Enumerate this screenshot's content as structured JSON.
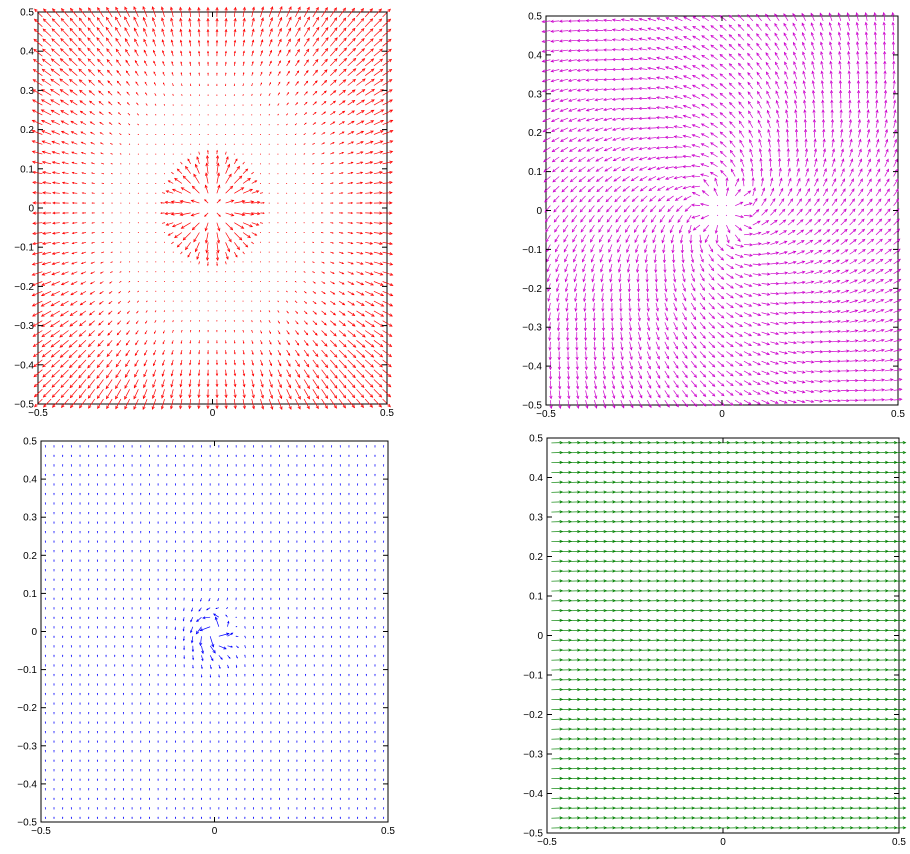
{
  "chart_data": [
    {
      "type": "quiver",
      "panel": "top-left",
      "field": "radial-rings",
      "color": "#ff0000",
      "xlim": [
        -0.5,
        0.5
      ],
      "ylim": [
        -0.5,
        0.5
      ],
      "xticks": [
        "-0.5",
        "0",
        "0.5"
      ],
      "yticks": [
        "-0.5",
        "-0.4",
        "-0.3",
        "-0.2",
        "-0.1",
        "0",
        "0.1",
        "0.2",
        "0.3",
        "0.4",
        "0.5"
      ],
      "grid": false
    },
    {
      "type": "quiver",
      "panel": "top-right",
      "field": "swirl-source",
      "color": "#cc00cc",
      "xlim": [
        -0.5,
        0.5
      ],
      "ylim": [
        -0.5,
        0.5
      ],
      "xticks": [
        "-0.5",
        "0",
        "0.5"
      ],
      "yticks": [
        "-0.5",
        "-0.4",
        "-0.3",
        "-0.2",
        "-0.1",
        "0",
        "0.1",
        "0.2",
        "0.3",
        "0.4",
        "0.5"
      ],
      "grid": false
    },
    {
      "type": "quiver",
      "panel": "bottom-left",
      "field": "small-central-swirl",
      "color": "#0000ff",
      "xlim": [
        -0.5,
        0.5
      ],
      "ylim": [
        -0.5,
        0.5
      ],
      "xticks": [
        "-0.5",
        "0",
        "0.5"
      ],
      "yticks": [
        "-0.5",
        "-0.4",
        "-0.3",
        "-0.2",
        "-0.1",
        "0",
        "0.1",
        "0.2",
        "0.3",
        "0.4",
        "0.5"
      ],
      "grid": false
    },
    {
      "type": "quiver",
      "panel": "bottom-right",
      "field": "uniform-horizontal",
      "color": "#008000",
      "xlim": [
        -0.5,
        0.5
      ],
      "ylim": [
        -0.5,
        0.5
      ],
      "xticks": [
        "-0.5",
        "0",
        "0.5"
      ],
      "yticks": [
        "-0.5",
        "-0.4",
        "-0.3",
        "-0.2",
        "-0.1",
        "0",
        "0.1",
        "0.2",
        "0.3",
        "0.4",
        "0.5"
      ],
      "grid": false
    }
  ]
}
